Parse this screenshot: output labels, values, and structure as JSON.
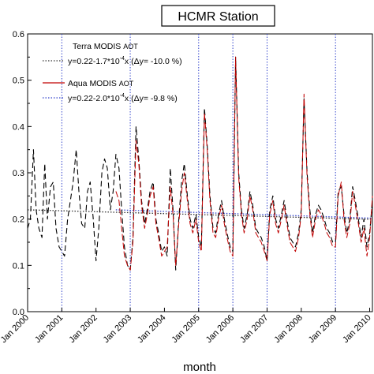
{
  "chart_data": {
    "type": "line",
    "title": "HCMR Station",
    "xlabel": "month",
    "ylabel": "",
    "xlim": [
      2000.0,
      2010.08
    ],
    "ylim": [
      0.0,
      0.6
    ],
    "x_ticks": [
      {
        "x": 2000.0,
        "label": "Jan 2000"
      },
      {
        "x": 2001.0,
        "label": "Jan 2001"
      },
      {
        "x": 2002.0,
        "label": "Jan 2002"
      },
      {
        "x": 2003.0,
        "label": "Jan 2003"
      },
      {
        "x": 2004.0,
        "label": "Jan 2004"
      },
      {
        "x": 2005.0,
        "label": "Jan 2005"
      },
      {
        "x": 2006.0,
        "label": "Jan 2006"
      },
      {
        "x": 2007.0,
        "label": "Jan 2007"
      },
      {
        "x": 2008.0,
        "label": "Jan 2008"
      },
      {
        "x": 2009.0,
        "label": "Jan 2009"
      },
      {
        "x": 2010.0,
        "label": "Jan 2010"
      }
    ],
    "y_ticks": [
      {
        "y": 0.0,
        "label": "0.0"
      },
      {
        "y": 0.1,
        "label": "0.1"
      },
      {
        "y": 0.2,
        "label": "0.2"
      },
      {
        "y": 0.3,
        "label": "0.3"
      },
      {
        "y": 0.4,
        "label": "0.4"
      },
      {
        "y": 0.5,
        "label": "0.5"
      },
      {
        "y": 0.6,
        "label": "0.6"
      }
    ],
    "vertical_reference_lines": [
      2001.0,
      2003.0,
      2005.0,
      2006.0,
      2007.0,
      2009.0
    ],
    "legend": {
      "placement": "top-left",
      "entries": [
        {
          "name": "Terra MODIS",
          "name_suffix": "AOT",
          "trend_prefix": "y=0.22-1.7*10",
          "trend_exp": "-4",
          "trend_suffix": "x (Δy= -10.0 %)"
        },
        {
          "name": "Aqua MODIS",
          "name_suffix": "AOT",
          "trend_prefix": "y=0.22-2.0*10",
          "trend_exp": "-4",
          "trend_suffix": "x (Δy= -9.8 %)"
        }
      ]
    },
    "series": [
      {
        "name": "Terra MODIS AOT",
        "color": "#000000",
        "dash": "dashed",
        "points": [
          [
            2000.0,
            0.18
          ],
          [
            2000.08,
            0.2
          ],
          [
            2000.17,
            0.35
          ],
          [
            2000.25,
            0.22
          ],
          [
            2000.33,
            0.18
          ],
          [
            2000.42,
            0.16
          ],
          [
            2000.5,
            0.32
          ],
          [
            2000.58,
            0.2
          ],
          [
            2000.67,
            0.27
          ],
          [
            2000.75,
            0.28
          ],
          [
            2000.83,
            0.18
          ],
          [
            2000.92,
            0.14
          ],
          [
            2001.0,
            0.13
          ],
          [
            2001.08,
            0.12
          ],
          [
            2001.17,
            0.2
          ],
          [
            2001.25,
            0.24
          ],
          [
            2001.33,
            0.28
          ],
          [
            2001.42,
            0.35
          ],
          [
            2001.5,
            0.26
          ],
          [
            2001.58,
            0.19
          ],
          [
            2001.67,
            0.18
          ],
          [
            2001.75,
            0.26
          ],
          [
            2001.83,
            0.28
          ],
          [
            2001.92,
            0.2
          ],
          [
            2002.0,
            0.11
          ],
          [
            2002.08,
            0.18
          ],
          [
            2002.17,
            0.3
          ],
          [
            2002.25,
            0.33
          ],
          [
            2002.33,
            0.31
          ],
          [
            2002.42,
            0.22
          ],
          [
            2002.5,
            0.26
          ],
          [
            2002.58,
            0.34
          ],
          [
            2002.67,
            0.31
          ],
          [
            2002.75,
            0.22
          ],
          [
            2002.83,
            0.14
          ],
          [
            2002.92,
            0.1
          ],
          [
            2003.0,
            0.09
          ],
          [
            2003.08,
            0.16
          ],
          [
            2003.17,
            0.4
          ],
          [
            2003.25,
            0.33
          ],
          [
            2003.33,
            0.24
          ],
          [
            2003.42,
            0.19
          ],
          [
            2003.5,
            0.22
          ],
          [
            2003.58,
            0.26
          ],
          [
            2003.67,
            0.28
          ],
          [
            2003.75,
            0.2
          ],
          [
            2003.83,
            0.17
          ],
          [
            2003.92,
            0.13
          ],
          [
            2004.0,
            0.14
          ],
          [
            2004.08,
            0.12
          ],
          [
            2004.17,
            0.31
          ],
          [
            2004.25,
            0.22
          ],
          [
            2004.33,
            0.09
          ],
          [
            2004.42,
            0.2
          ],
          [
            2004.5,
            0.28
          ],
          [
            2004.58,
            0.32
          ],
          [
            2004.67,
            0.25
          ],
          [
            2004.75,
            0.2
          ],
          [
            2004.83,
            0.18
          ],
          [
            2004.92,
            0.21
          ],
          [
            2005.0,
            0.16
          ],
          [
            2005.08,
            0.14
          ],
          [
            2005.17,
            0.44
          ],
          [
            2005.25,
            0.36
          ],
          [
            2005.33,
            0.25
          ],
          [
            2005.42,
            0.18
          ],
          [
            2005.5,
            0.17
          ],
          [
            2005.58,
            0.21
          ],
          [
            2005.67,
            0.24
          ],
          [
            2005.75,
            0.2
          ],
          [
            2005.83,
            0.17
          ],
          [
            2005.92,
            0.14
          ],
          [
            2006.0,
            0.13
          ],
          [
            2006.08,
            0.55
          ],
          [
            2006.17,
            0.3
          ],
          [
            2006.25,
            0.22
          ],
          [
            2006.33,
            0.18
          ],
          [
            2006.42,
            0.21
          ],
          [
            2006.5,
            0.26
          ],
          [
            2006.58,
            0.23
          ],
          [
            2006.67,
            0.18
          ],
          [
            2006.75,
            0.17
          ],
          [
            2006.83,
            0.16
          ],
          [
            2006.92,
            0.14
          ],
          [
            2007.0,
            0.11
          ],
          [
            2007.08,
            0.22
          ],
          [
            2007.17,
            0.25
          ],
          [
            2007.25,
            0.2
          ],
          [
            2007.33,
            0.18
          ],
          [
            2007.42,
            0.21
          ],
          [
            2007.5,
            0.24
          ],
          [
            2007.58,
            0.2
          ],
          [
            2007.67,
            0.16
          ],
          [
            2007.75,
            0.15
          ],
          [
            2007.83,
            0.14
          ],
          [
            2007.92,
            0.17
          ],
          [
            2008.0,
            0.22
          ],
          [
            2008.08,
            0.46
          ],
          [
            2008.17,
            0.3
          ],
          [
            2008.25,
            0.22
          ],
          [
            2008.33,
            0.17
          ],
          [
            2008.42,
            0.21
          ],
          [
            2008.5,
            0.23
          ],
          [
            2008.58,
            0.22
          ],
          [
            2008.67,
            0.2
          ],
          [
            2008.75,
            0.18
          ],
          [
            2008.83,
            0.17
          ],
          [
            2008.92,
            0.15
          ],
          [
            2009.0,
            0.15
          ],
          [
            2009.08,
            0.26
          ],
          [
            2009.17,
            0.27
          ],
          [
            2009.25,
            0.21
          ],
          [
            2009.33,
            0.17
          ],
          [
            2009.42,
            0.2
          ],
          [
            2009.5,
            0.27
          ],
          [
            2009.58,
            0.24
          ],
          [
            2009.67,
            0.2
          ],
          [
            2009.75,
            0.16
          ],
          [
            2009.83,
            0.2
          ],
          [
            2009.92,
            0.14
          ],
          [
            2010.0,
            0.17
          ],
          [
            2010.08,
            0.24
          ]
        ]
      },
      {
        "name": "Aqua MODIS AOT",
        "color": "#c00000",
        "dash": "dashed",
        "points": [
          [
            2002.58,
            0.26
          ],
          [
            2002.67,
            0.24
          ],
          [
            2002.75,
            0.18
          ],
          [
            2002.83,
            0.12
          ],
          [
            2002.92,
            0.1
          ],
          [
            2003.0,
            0.09
          ],
          [
            2003.08,
            0.15
          ],
          [
            2003.17,
            0.37
          ],
          [
            2003.25,
            0.32
          ],
          [
            2003.33,
            0.23
          ],
          [
            2003.42,
            0.18
          ],
          [
            2003.5,
            0.21
          ],
          [
            2003.58,
            0.25
          ],
          [
            2003.67,
            0.27
          ],
          [
            2003.75,
            0.19
          ],
          [
            2003.83,
            0.16
          ],
          [
            2003.92,
            0.12
          ],
          [
            2004.0,
            0.13
          ],
          [
            2004.08,
            0.14
          ],
          [
            2004.17,
            0.27
          ],
          [
            2004.25,
            0.21
          ],
          [
            2004.33,
            0.1
          ],
          [
            2004.42,
            0.19
          ],
          [
            2004.5,
            0.26
          ],
          [
            2004.58,
            0.3
          ],
          [
            2004.67,
            0.24
          ],
          [
            2004.75,
            0.19
          ],
          [
            2004.83,
            0.17
          ],
          [
            2004.92,
            0.2
          ],
          [
            2005.0,
            0.15
          ],
          [
            2005.08,
            0.13
          ],
          [
            2005.17,
            0.43
          ],
          [
            2005.25,
            0.35
          ],
          [
            2005.33,
            0.24
          ],
          [
            2005.42,
            0.17
          ],
          [
            2005.5,
            0.16
          ],
          [
            2005.58,
            0.2
          ],
          [
            2005.67,
            0.23
          ],
          [
            2005.75,
            0.19
          ],
          [
            2005.83,
            0.16
          ],
          [
            2005.92,
            0.13
          ],
          [
            2006.0,
            0.12
          ],
          [
            2006.08,
            0.55
          ],
          [
            2006.17,
            0.29
          ],
          [
            2006.25,
            0.21
          ],
          [
            2006.33,
            0.17
          ],
          [
            2006.42,
            0.2
          ],
          [
            2006.5,
            0.25
          ],
          [
            2006.58,
            0.22
          ],
          [
            2006.67,
            0.17
          ],
          [
            2006.75,
            0.16
          ],
          [
            2006.83,
            0.15
          ],
          [
            2006.92,
            0.13
          ],
          [
            2007.0,
            0.11
          ],
          [
            2007.08,
            0.21
          ],
          [
            2007.17,
            0.24
          ],
          [
            2007.25,
            0.19
          ],
          [
            2007.33,
            0.17
          ],
          [
            2007.42,
            0.2
          ],
          [
            2007.5,
            0.23
          ],
          [
            2007.58,
            0.19
          ],
          [
            2007.67,
            0.15
          ],
          [
            2007.75,
            0.14
          ],
          [
            2007.83,
            0.13
          ],
          [
            2007.92,
            0.16
          ],
          [
            2008.0,
            0.21
          ],
          [
            2008.08,
            0.47
          ],
          [
            2008.17,
            0.29
          ],
          [
            2008.25,
            0.21
          ],
          [
            2008.33,
            0.16
          ],
          [
            2008.42,
            0.2
          ],
          [
            2008.5,
            0.22
          ],
          [
            2008.58,
            0.21
          ],
          [
            2008.67,
            0.19
          ],
          [
            2008.75,
            0.17
          ],
          [
            2008.83,
            0.16
          ],
          [
            2008.92,
            0.14
          ],
          [
            2009.0,
            0.14
          ],
          [
            2009.08,
            0.25
          ],
          [
            2009.17,
            0.28
          ],
          [
            2009.25,
            0.2
          ],
          [
            2009.33,
            0.16
          ],
          [
            2009.42,
            0.19
          ],
          [
            2009.5,
            0.26
          ],
          [
            2009.58,
            0.23
          ],
          [
            2009.67,
            0.19
          ],
          [
            2009.75,
            0.15
          ],
          [
            2009.83,
            0.18
          ],
          [
            2009.92,
            0.12
          ],
          [
            2010.0,
            0.16
          ],
          [
            2010.08,
            0.25
          ]
        ]
      }
    ],
    "trend_lines": [
      {
        "series": "Terra MODIS AOT",
        "color": "#333333",
        "style": "dotted",
        "intercept": 0.22,
        "slope": -0.00017,
        "x_start": 2000.0
      },
      {
        "series": "Aqua MODIS AOT",
        "color": "#3344cc",
        "style": "dotted",
        "intercept": 0.22,
        "slope": -0.0002,
        "x_start": 2002.58
      }
    ]
  }
}
